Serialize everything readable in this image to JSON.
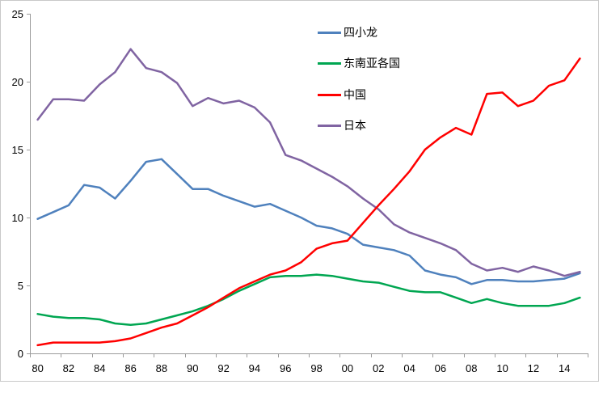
{
  "chart_data": {
    "type": "line",
    "years": [
      1980,
      1981,
      1982,
      1983,
      1984,
      1985,
      1986,
      1987,
      1988,
      1989,
      1990,
      1991,
      1992,
      1993,
      1994,
      1995,
      1996,
      1997,
      1998,
      1999,
      2000,
      2001,
      2002,
      2003,
      2004,
      2005,
      2006,
      2007,
      2008,
      2009,
      2010,
      2011,
      2012,
      2013,
      2014,
      2015
    ],
    "x_tick_labels": [
      "80",
      "82",
      "84",
      "86",
      "88",
      "90",
      "92",
      "94",
      "96",
      "98",
      "00",
      "02",
      "04",
      "06",
      "08",
      "10",
      "12",
      "14"
    ],
    "y_ticks": [
      0,
      5,
      10,
      15,
      20,
      25
    ],
    "ylim": [
      0,
      25
    ],
    "grid": false,
    "legend_position": "inside top-center",
    "axis_color": "#9b9b9b",
    "label_color": "#000000",
    "border_color": "#c9c9c9",
    "series": [
      {
        "name": "四小龙",
        "color": "#4F81BD",
        "values": [
          9.9,
          10.4,
          10.9,
          12.4,
          12.2,
          11.4,
          12.7,
          14.1,
          14.3,
          13.2,
          12.1,
          12.1,
          11.6,
          11.2,
          10.8,
          11.0,
          10.5,
          10.0,
          9.4,
          9.2,
          8.8,
          8.0,
          7.8,
          7.6,
          7.2,
          6.1,
          5.8,
          5.6,
          5.1,
          5.4,
          5.4,
          5.3,
          5.3,
          5.4,
          5.5,
          5.9
        ]
      },
      {
        "name": "东南亚各国",
        "color": "#00A651",
        "values": [
          2.9,
          2.7,
          2.6,
          2.6,
          2.5,
          2.2,
          2.1,
          2.2,
          2.5,
          2.8,
          3.1,
          3.5,
          4.0,
          4.6,
          5.1,
          5.6,
          5.7,
          5.7,
          5.8,
          5.7,
          5.5,
          5.3,
          5.2,
          4.9,
          4.6,
          4.5,
          4.5,
          4.1,
          3.7,
          4.0,
          3.7,
          3.5,
          3.5,
          3.5,
          3.7,
          4.1
        ]
      },
      {
        "name": "中国",
        "color": "#FF0000",
        "values": [
          0.6,
          0.8,
          0.8,
          0.8,
          0.8,
          0.9,
          1.1,
          1.5,
          1.9,
          2.2,
          2.8,
          3.4,
          4.1,
          4.8,
          5.3,
          5.8,
          6.1,
          6.7,
          7.7,
          8.1,
          8.3,
          9.6,
          10.9,
          12.1,
          13.4,
          15.0,
          15.9,
          16.6,
          16.1,
          19.1,
          19.2,
          18.2,
          18.6,
          19.7,
          20.1,
          21.7
        ]
      },
      {
        "name": "日本",
        "color": "#8064A2",
        "values": [
          17.2,
          18.7,
          18.7,
          18.6,
          19.8,
          20.7,
          22.4,
          21.0,
          20.7,
          19.9,
          18.2,
          18.8,
          18.4,
          18.6,
          18.1,
          17.0,
          14.6,
          14.2,
          13.6,
          13.0,
          12.3,
          11.4,
          10.6,
          9.5,
          8.9,
          8.5,
          8.1,
          7.6,
          6.6,
          6.1,
          6.3,
          6.0,
          6.4,
          6.1,
          5.7,
          6.0
        ]
      }
    ]
  }
}
